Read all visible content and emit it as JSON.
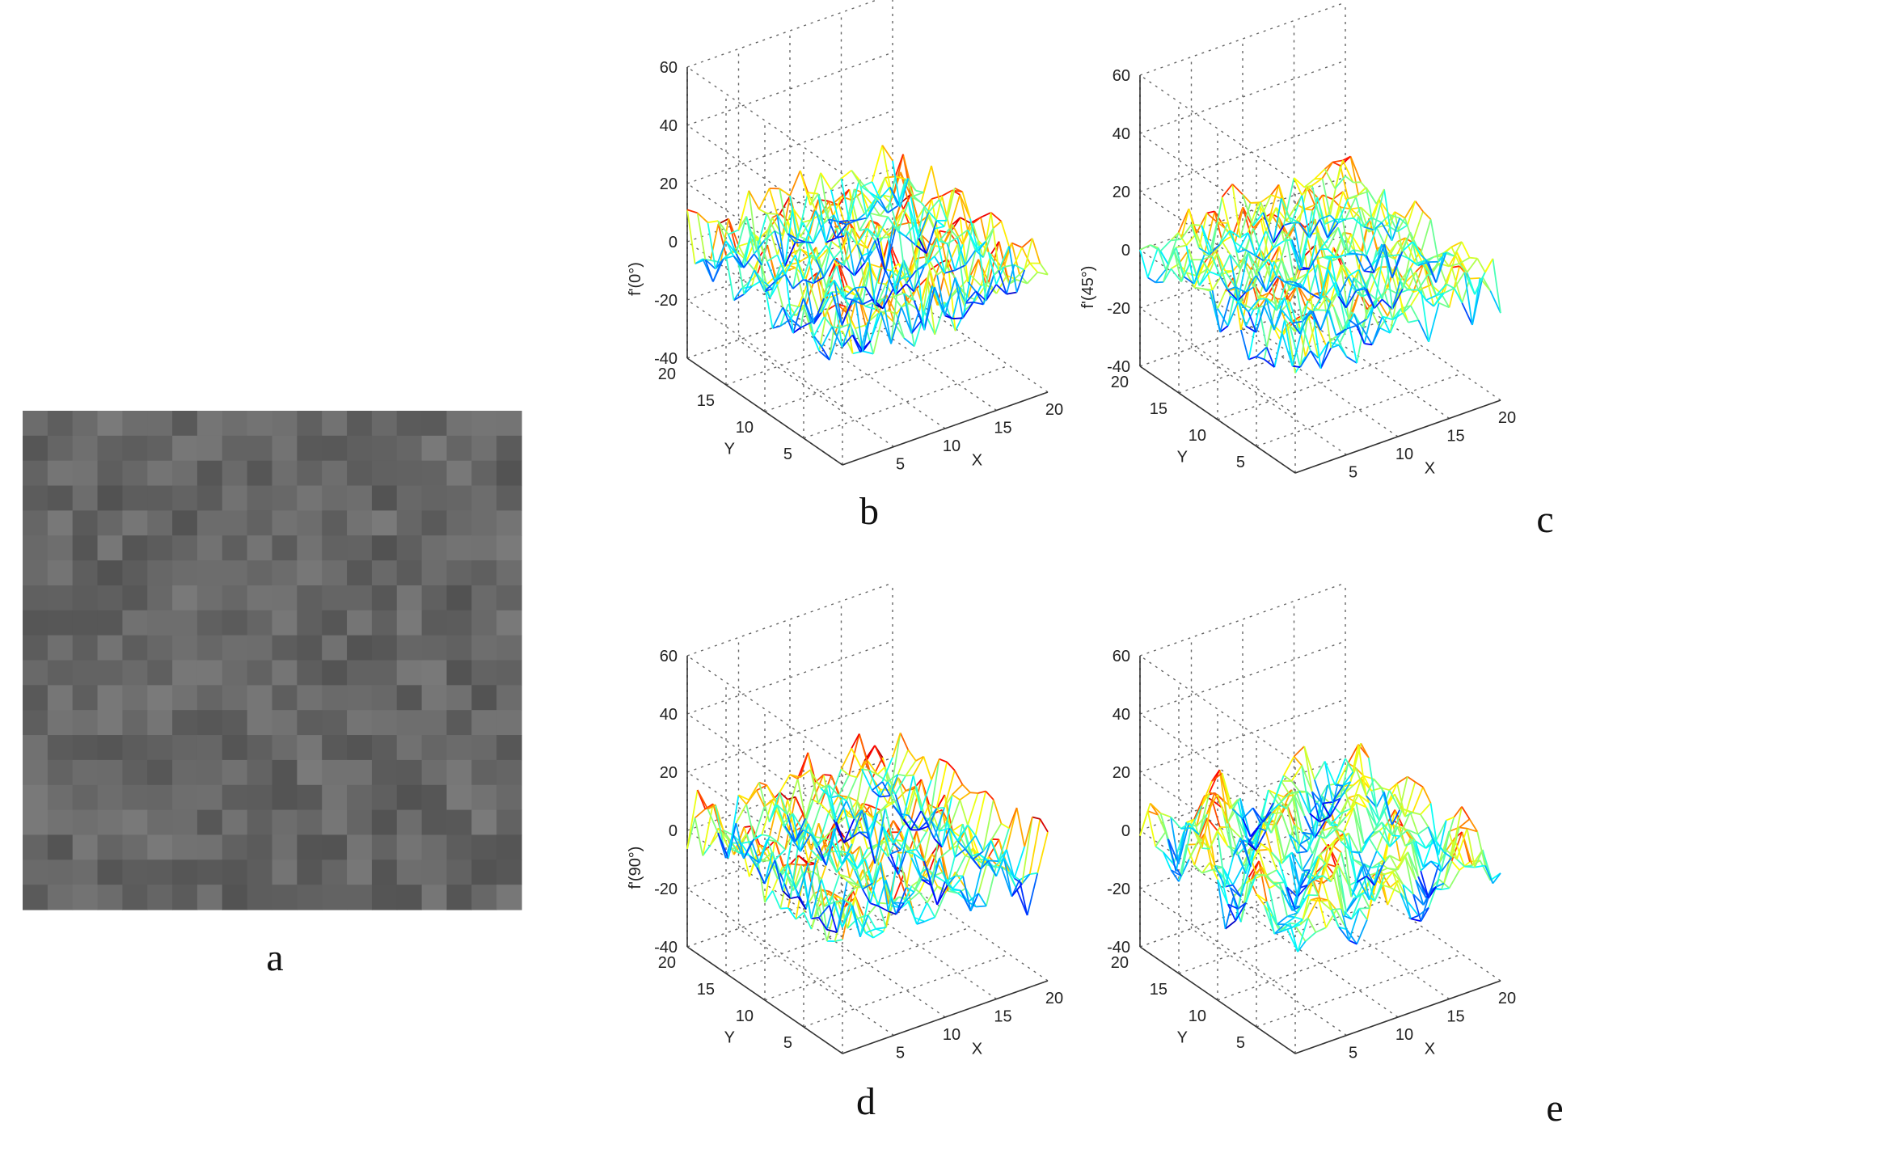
{
  "image_panel": {
    "letter": "a",
    "grid_size": 20
  },
  "chart_data": [
    {
      "panel": "b",
      "type": "surface",
      "zlabel": "f'(0°)",
      "xlabel": "X",
      "ylabel": "Y",
      "xlim": [
        0,
        20
      ],
      "ylim": [
        0,
        20
      ],
      "zlim": [
        -40,
        60
      ],
      "zticks": [
        -40,
        -20,
        0,
        20,
        40,
        60
      ],
      "xticks": [
        5,
        10,
        15,
        20
      ],
      "yticks": [
        5,
        10,
        15,
        20
      ],
      "grid": true,
      "colormap": "jet",
      "surface": {
        "nx": 20,
        "ny": 20,
        "z_range": [
          -15,
          15
        ],
        "pattern": "stripes-along-x"
      }
    },
    {
      "panel": "c",
      "type": "surface",
      "zlabel": "f'(45°)",
      "xlabel": "X",
      "ylabel": "Y",
      "xlim": [
        0,
        20
      ],
      "ylim": [
        0,
        20
      ],
      "zlim": [
        -40,
        60
      ],
      "zticks": [
        -40,
        -20,
        0,
        20,
        40,
        60
      ],
      "xticks": [
        5,
        10,
        15,
        20
      ],
      "yticks": [
        5,
        10,
        15,
        20
      ],
      "grid": true,
      "colormap": "jet",
      "surface": {
        "nx": 20,
        "ny": 20,
        "z_range": [
          -15,
          15
        ],
        "pattern": "diagonal"
      }
    },
    {
      "panel": "d",
      "type": "surface",
      "zlabel": "f'(90°)",
      "xlabel": "X",
      "ylabel": "Y",
      "xlim": [
        0,
        20
      ],
      "ylim": [
        0,
        20
      ],
      "zlim": [
        -40,
        60
      ],
      "zticks": [
        -40,
        -20,
        0,
        20,
        40,
        60
      ],
      "xticks": [
        5,
        10,
        15,
        20
      ],
      "yticks": [
        5,
        10,
        15,
        20
      ],
      "grid": true,
      "colormap": "jet",
      "surface": {
        "nx": 20,
        "ny": 20,
        "z_range": [
          -15,
          15
        ],
        "pattern": "stripes-along-y"
      }
    },
    {
      "panel": "e",
      "type": "surface",
      "zlabel": "",
      "xlabel": "X",
      "ylabel": "Y",
      "xlim": [
        0,
        20
      ],
      "ylim": [
        0,
        20
      ],
      "zlim": [
        -40,
        60
      ],
      "zticks": [
        -40,
        -20,
        0,
        20,
        40,
        60
      ],
      "xticks": [
        5,
        10,
        15,
        20
      ],
      "yticks": [
        5,
        10,
        15,
        20
      ],
      "grid": true,
      "colormap": "jet",
      "surface": {
        "nx": 20,
        "ny": 20,
        "z_range": [
          -15,
          15
        ],
        "pattern": "anti-diagonal"
      }
    }
  ]
}
